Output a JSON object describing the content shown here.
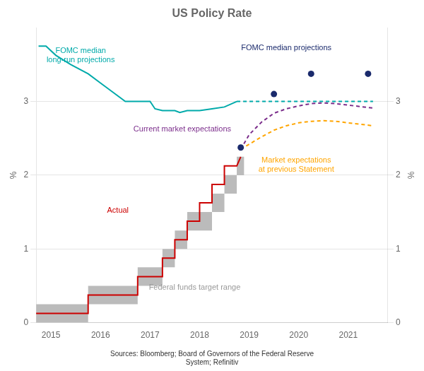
{
  "chart_data": {
    "type": "line",
    "title": "US Policy Rate",
    "source": "Sources: Bloomberg; Board of Governors of the Federal Reserve\nSystem; Refinitiv",
    "ylabel": "%",
    "y2label": "%",
    "xlim": [
      2014.7,
      2021.8
    ],
    "xticks": [
      2015,
      2016,
      2017,
      2018,
      2019,
      2020,
      2021
    ],
    "ylim": [
      0,
      4.0
    ],
    "yticks": [
      0,
      1,
      2,
      3
    ],
    "y2lim": [
      0,
      4.0
    ],
    "y2ticks": [
      0,
      1,
      2,
      3
    ],
    "grid": "y",
    "legend": false,
    "series": [
      {
        "type": "range",
        "color": "#BBBBBB",
        "x_start": [
          2014.7,
          2015.0,
          2015.75,
          2016.75,
          2017.25,
          2017.5,
          2017.75,
          2018.25,
          2018.5,
          2018.75
        ],
        "x_end": [
          2015.0,
          2015.75,
          2016.75,
          2017.25,
          2017.5,
          2017.75,
          2018.25,
          2018.5,
          2018.75,
          2018.9
        ],
        "lower": [
          0.0,
          0.0,
          0.25,
          0.5,
          0.75,
          1.0,
          1.25,
          1.5,
          1.75,
          2.0
        ],
        "upper": [
          0.25,
          0.25,
          0.5,
          0.75,
          1.0,
          1.25,
          1.5,
          1.75,
          2.0,
          2.25
        ]
      },
      {
        "type": "line",
        "color": "#CC0000",
        "line_style": "solid",
        "x": [
          2014.7,
          2015.75,
          2015.75,
          2016.75,
          2016.75,
          2017.25,
          2017.25,
          2017.5,
          2017.5,
          2017.75,
          2017.75,
          2018.0,
          2018.0,
          2018.25,
          2018.25,
          2018.5,
          2018.5,
          2018.75,
          2018.83
        ],
        "values": [
          0.125,
          0.125,
          0.375,
          0.375,
          0.625,
          0.625,
          0.875,
          0.875,
          1.125,
          1.125,
          1.375,
          1.375,
          1.625,
          1.625,
          1.875,
          1.875,
          2.125,
          2.125,
          2.25
        ]
      },
      {
        "type": "line",
        "color": "#00AAAA",
        "line_style": "solid",
        "x": [
          2014.75,
          2014.9,
          2015.1,
          2015.4,
          2015.75,
          2016.0,
          2016.25,
          2016.5,
          2016.75,
          2017.0,
          2017.1,
          2017.25,
          2017.5,
          2017.6,
          2017.75,
          2018.0,
          2018.25,
          2018.5,
          2018.75
        ],
        "values": [
          3.75,
          3.75,
          3.625,
          3.5,
          3.375,
          3.25,
          3.125,
          3.0,
          3.0,
          3.0,
          2.9,
          2.875,
          2.875,
          2.85,
          2.875,
          2.875,
          2.9,
          2.925,
          3.0
        ]
      },
      {
        "type": "line",
        "color": "#00AAAA",
        "line_style": "dashed",
        "x": [
          2018.75,
          2019.0,
          2019.25,
          2019.5,
          2019.75,
          2020.0,
          2020.25,
          2020.5,
          2020.75,
          2021.0,
          2021.25,
          2021.5
        ],
        "values": [
          3.0,
          3.0,
          3.0,
          3.0,
          3.0,
          3.0,
          3.0,
          3.0,
          3.0,
          3.0,
          3.0,
          3.0
        ]
      },
      {
        "type": "line",
        "color": "#7B2D8B",
        "line_style": "dashed",
        "x": [
          2018.83,
          2019.0,
          2019.25,
          2019.5,
          2019.75,
          2020.0,
          2020.25,
          2020.5,
          2020.75,
          2021.0,
          2021.25,
          2021.5
        ],
        "values": [
          2.35,
          2.55,
          2.72,
          2.84,
          2.9,
          2.94,
          2.97,
          2.98,
          2.97,
          2.95,
          2.93,
          2.91
        ]
      },
      {
        "type": "line",
        "color": "#FFA500",
        "line_style": "dashed",
        "x": [
          2018.83,
          2019.0,
          2019.25,
          2019.5,
          2019.75,
          2020.0,
          2020.25,
          2020.5,
          2020.75,
          2021.0,
          2021.25,
          2021.5
        ],
        "values": [
          2.35,
          2.42,
          2.52,
          2.61,
          2.67,
          2.71,
          2.73,
          2.74,
          2.73,
          2.71,
          2.69,
          2.67
        ]
      },
      {
        "type": "scatter",
        "color": "#1a2a6c",
        "marker": "o",
        "x": [
          2018.83,
          2019.5,
          2020.25,
          2021.4
        ],
        "values": [
          2.375,
          3.1,
          3.375,
          3.375
        ]
      }
    ],
    "annotations": [
      {
        "text": "FOMC median\nlong-run projections",
        "x": 2015.6,
        "y": 3.62,
        "color": "#00AAAA"
      },
      {
        "text": "FOMC median projections",
        "x": 2019.75,
        "y": 3.72,
        "color": "#1a2a6c"
      },
      {
        "text": "Current market expectations",
        "x": 2017.65,
        "y": 2.62,
        "color": "#7B2D8B"
      },
      {
        "text": "Actual",
        "x": 2016.35,
        "y": 1.52,
        "color": "#CC0000"
      },
      {
        "text": "Federal funds target range",
        "x": 2017.9,
        "y": 0.48,
        "color": "#999999"
      },
      {
        "text": "Market expectations\nat previous Statement",
        "x": 2019.95,
        "y": 2.14,
        "color": "#FFA500"
      }
    ]
  }
}
